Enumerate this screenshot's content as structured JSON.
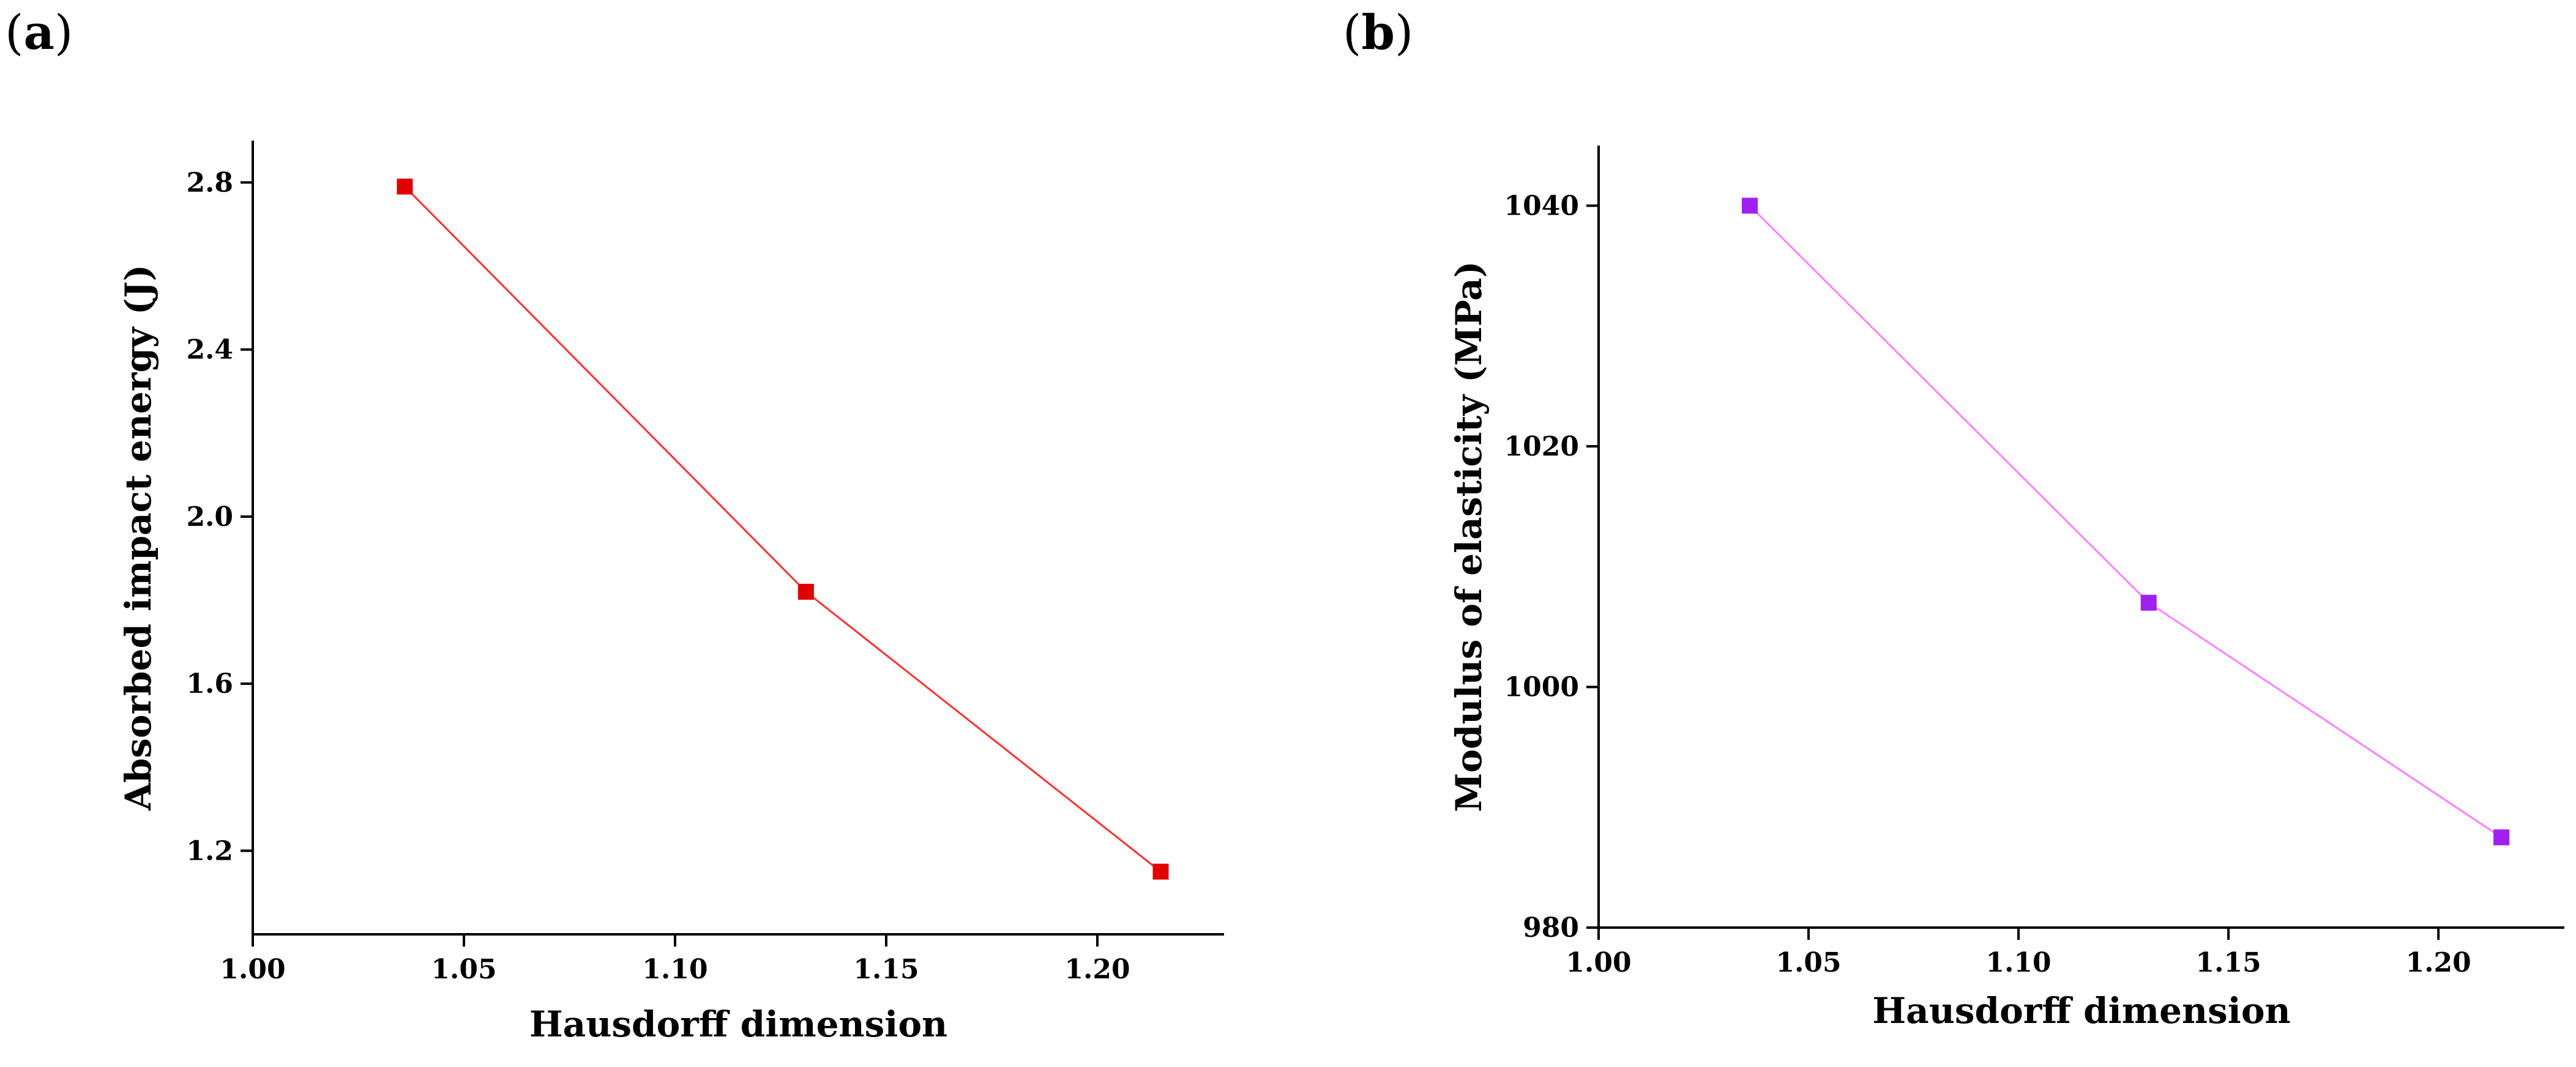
{
  "chart_data": [
    {
      "panel_label": "a",
      "type": "line",
      "xlabel": "Hausdorff dimension",
      "ylabel": "Absorbed impact energy (J)",
      "xlim": [
        1.0,
        1.23
      ],
      "ylim": [
        1.0,
        2.9
      ],
      "xticks": [
        "1.00",
        "1.05",
        "1.10",
        "1.15",
        "1.20"
      ],
      "yticks": [
        "1.2",
        "1.6",
        "2.0",
        "2.4",
        "2.8"
      ],
      "marker_color": "#e00000",
      "line_color": "#ff3030",
      "series": [
        {
          "name": "Absorbed impact energy",
          "x": [
            1.036,
            1.131,
            1.215
          ],
          "y": [
            2.79,
            1.82,
            1.15
          ]
        }
      ]
    },
    {
      "panel_label": "b",
      "type": "line",
      "xlabel": "Hausdorff dimension",
      "ylabel": "Modulus of elasticity (MPa)",
      "xlim": [
        1.0,
        1.23
      ],
      "ylim": [
        980,
        1045
      ],
      "xticks": [
        "1.00",
        "1.05",
        "1.10",
        "1.15",
        "1.20"
      ],
      "yticks": [
        "980",
        "1000",
        "1020",
        "1040"
      ],
      "marker_color": "#a020f0",
      "line_color": "#ff80ff",
      "series": [
        {
          "name": "Modulus of elasticity",
          "x": [
            1.036,
            1.131,
            1.215
          ],
          "y": [
            1040,
            1007,
            987.5
          ]
        }
      ]
    }
  ]
}
